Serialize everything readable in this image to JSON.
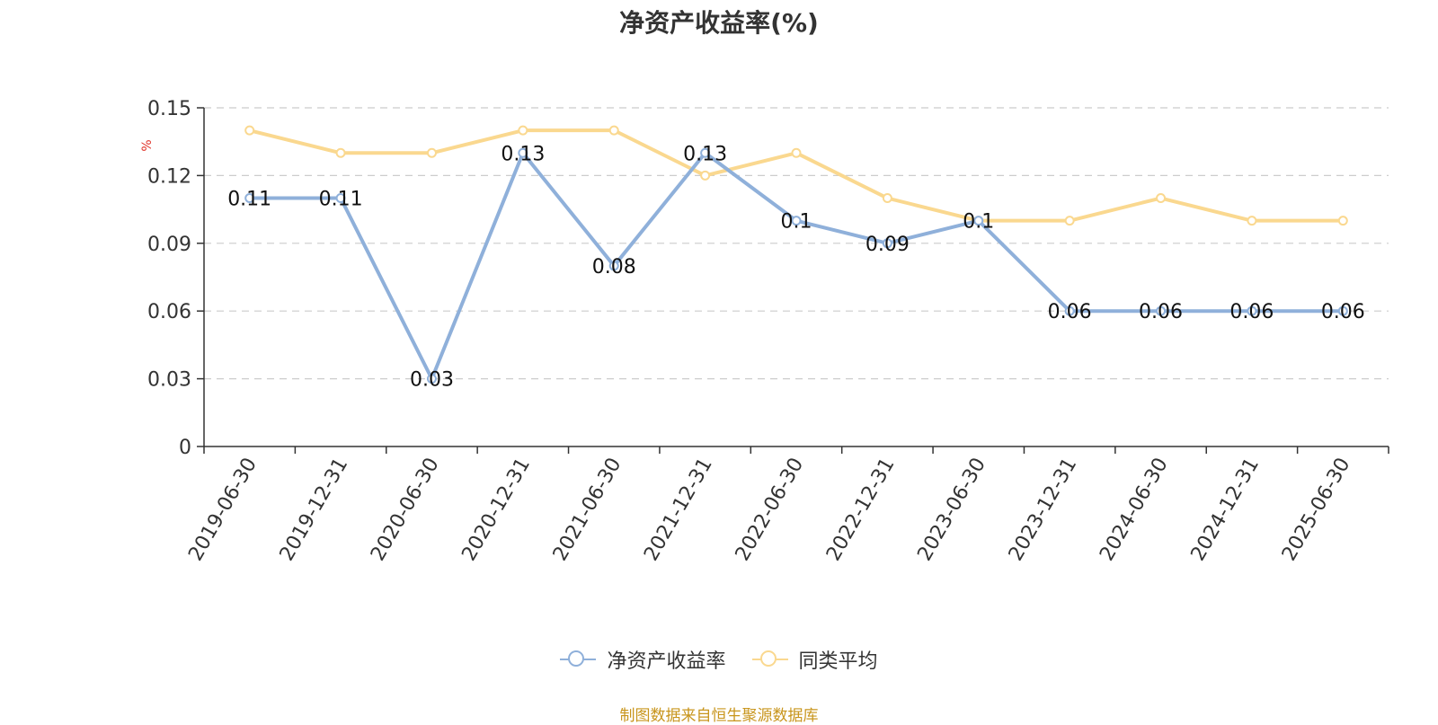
{
  "title": "净资产收益率(%)",
  "source": "制图数据来自恒生聚源数据库",
  "legend": [
    {
      "name": "净资产收益率",
      "color": "#8fb0da"
    },
    {
      "name": "同类平均",
      "color": "#fad88f"
    }
  ],
  "chart_data": {
    "type": "line",
    "title": "净资产收益率(%)",
    "ylabel": "%",
    "xlabel": "",
    "categories": [
      "2019-06-30",
      "2019-12-31",
      "2020-06-30",
      "2020-12-31",
      "2021-06-30",
      "2021-12-31",
      "2022-06-30",
      "2022-12-31",
      "2023-06-30",
      "2023-12-31",
      "2024-06-30",
      "2024-12-31",
      "2025-06-30"
    ],
    "ylim": [
      0,
      0.15
    ],
    "yticks": [
      "0",
      "0.03",
      "0.06",
      "0.09",
      "0.12",
      "0.15"
    ],
    "grid": true,
    "legend_position": "bottom",
    "series": [
      {
        "name": "净资产收益率",
        "color": "#8fb0da",
        "show_labels": true,
        "values": [
          0.11,
          0.11,
          0.03,
          0.13,
          0.08,
          0.13,
          0.1,
          0.09,
          0.1,
          0.06,
          0.06,
          0.06,
          0.06
        ],
        "labels": [
          "0.11",
          "0.11",
          "0.03",
          "0.13",
          "0.08",
          "0.13",
          "0.1",
          "0.09",
          "0.1",
          "0.06",
          "0.06",
          "0.06",
          "0.06"
        ]
      },
      {
        "name": "同类平均",
        "color": "#fad88f",
        "show_labels": false,
        "values": [
          0.14,
          0.13,
          0.13,
          0.14,
          0.14,
          0.12,
          0.13,
          0.11,
          0.1,
          0.1,
          0.11,
          0.1,
          0.1
        ]
      }
    ]
  }
}
